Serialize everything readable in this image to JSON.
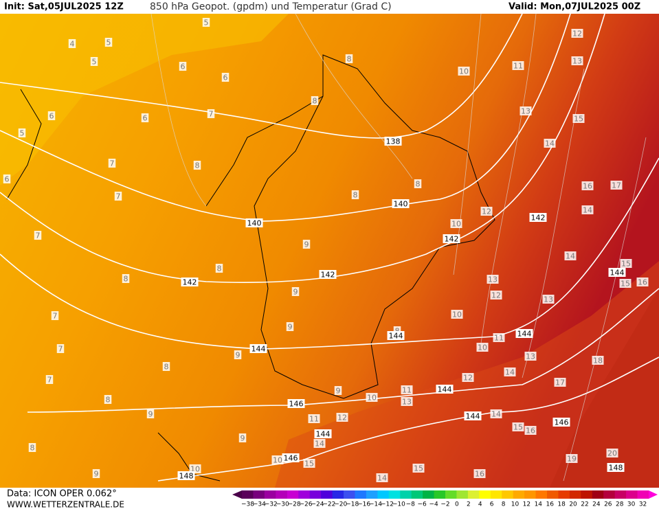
{
  "header": {
    "init": "Init: Sat,05JUL2025 12Z",
    "title": "850 hPa Geopot. (gpdm) und Temperatur (Grad C)",
    "valid": "Valid: Mon,07JUL2025 00Z"
  },
  "footer": {
    "data": "Data: ICON OPER 0.062°",
    "site": "WWW.WETTERZENTRALE.DE"
  },
  "colorbar": {
    "labels": [
      "−38",
      "−34",
      "−32",
      "−30",
      "−28",
      "−26",
      "−24",
      "−22",
      "−20",
      "−18",
      "−16",
      "−14",
      "−12",
      "−10",
      "−8",
      "−6",
      "−4",
      "−2",
      "0",
      "2",
      "4",
      "6",
      "8",
      "10",
      "12",
      "14",
      "16",
      "18",
      "20",
      "22",
      "24",
      "26",
      "28",
      "30",
      "32"
    ],
    "colors": [
      "#5a005a",
      "#78007d",
      "#9b00a0",
      "#b400b9",
      "#c800d2",
      "#a000dc",
      "#7800dc",
      "#5000dc",
      "#2828e6",
      "#3c50f0",
      "#1e78ff",
      "#1ea0ff",
      "#00c8ff",
      "#00e1e1",
      "#00d2aa",
      "#00c878",
      "#00b446",
      "#28c828",
      "#64dc28",
      "#a0e632",
      "#dcf032",
      "#ffff00",
      "#ffe600",
      "#ffc800",
      "#ffaa00",
      "#ff9600",
      "#ff7800",
      "#f05a00",
      "#e63c00",
      "#d22800",
      "#be1400",
      "#a00014",
      "#b4003c",
      "#c80064",
      "#dc008c",
      "#f000b4"
    ]
  },
  "map": {
    "temperature_labels": [
      "4",
      "5",
      "5",
      "5",
      "5",
      "6",
      "6",
      "6",
      "6",
      "6",
      "7",
      "7",
      "7",
      "7",
      "7",
      "7",
      "7",
      "8",
      "8",
      "8",
      "8",
      "8",
      "8",
      "8",
      "8",
      "8",
      "8",
      "8",
      "9",
      "9",
      "9",
      "9",
      "9",
      "9",
      "9",
      "9",
      "10",
      "10",
      "10",
      "10",
      "10",
      "10",
      "10",
      "11",
      "11",
      "11",
      "11",
      "12",
      "12",
      "12",
      "12",
      "12",
      "13",
      "13",
      "13",
      "13",
      "13",
      "13",
      "14",
      "14",
      "14",
      "14",
      "14",
      "14",
      "14",
      "15",
      "15",
      "15",
      "15",
      "15",
      "15",
      "16",
      "16",
      "16",
      "16",
      "17",
      "17",
      "18",
      "19",
      "20"
    ],
    "geopotential_labels": [
      "138",
      "140",
      "140",
      "142",
      "142",
      "142",
      "142",
      "144",
      "144",
      "144",
      "144",
      "144",
      "144",
      "144",
      "146",
      "146",
      "146",
      "148",
      "148"
    ]
  }
}
